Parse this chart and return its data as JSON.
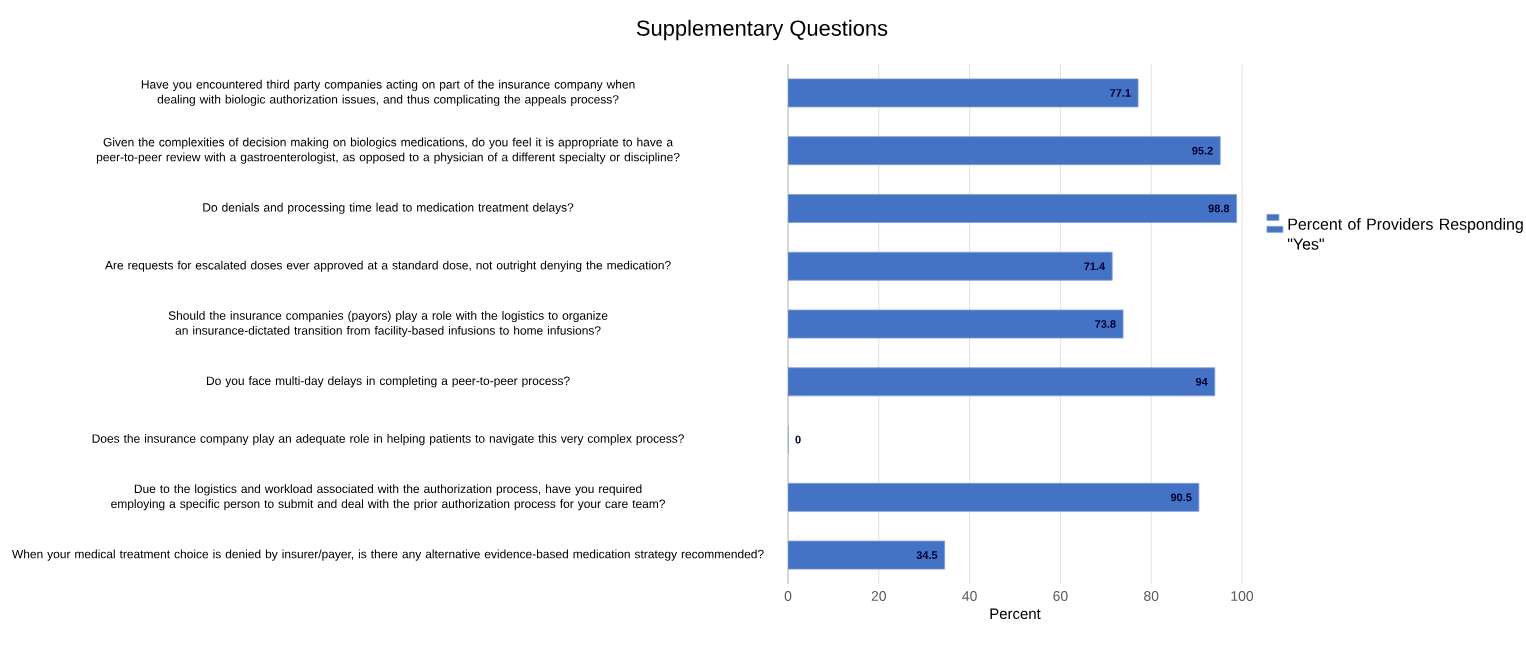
{
  "chart_data": {
    "type": "bar",
    "orientation": "horizontal",
    "title": "Supplementary Questions",
    "xlabel": "Percent",
    "categories": [
      "Have you encountered third party companies acting on part of the insurance company when dealing with biologic authorization issues, and thus complicating the appeals process?",
      "Given the complexities of decision making on biologics medications, do you feel it is appropriate to have a peer-to-peer review with a gastroenterologist, as opposed to a physician of a different specialty or discipline?",
      "Do denials and processing time lead to medication treatment delays?",
      "Are requests for escalated doses ever approved at a standard dose, not outright denying the medication?",
      "Should the insurance companies (payors) play a role with the logistics to organize an insurance-dictated transition from facility-based infusions to home infusions?",
      "Do you face multi-day delays in completing a peer-to-peer process?",
      "Does the insurance company play an adequate role in helping patients to navigate this very complex process?",
      "Due to the logistics and workload associated with the authorization process, have you required employing a specific person to submit and deal with the prior authorization process for your care team?",
      "When your medical treatment choice is denied by insurer/payer, is there any alternative evidence-based medication strategy recommended?"
    ],
    "series": [
      {
        "name": "Percent of Providers Responding \"Yes\"",
        "color": "#4472c4",
        "values": [
          77.1,
          95.2,
          98.8,
          71.4,
          73.8,
          94,
          0,
          90.5,
          34.5
        ],
        "value_labels": [
          "77.1",
          "95.2",
          "98.8",
          "71.4",
          "73.8",
          "94",
          "0",
          "90.5",
          "34.5"
        ]
      }
    ],
    "xlim": [
      0,
      100
    ],
    "xticks": [
      0,
      20,
      40,
      60,
      80,
      100
    ],
    "grid": "x",
    "legend": "right"
  }
}
